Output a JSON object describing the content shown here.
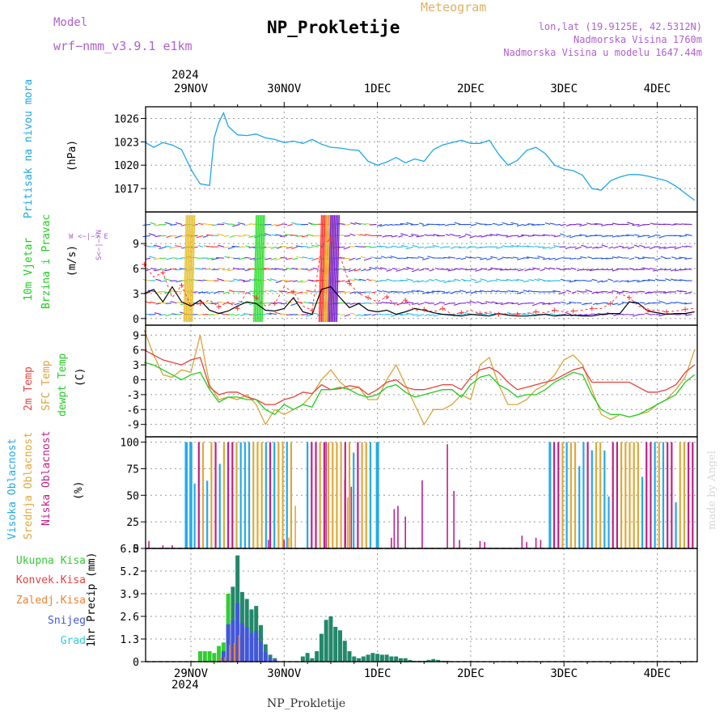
{
  "header": {
    "model_label": "Model",
    "model_name": "wrf−nmm_v3.9.1  e1km",
    "title": "NP_Prokletije",
    "subtitle": "Meteogram",
    "lonlat": "lon,lat (19.9125E, 42.5312N)",
    "elevation": "Nadmorska Visina 1760m",
    "model_elevation": "Nadmorska Visina u modelu 1647.44m",
    "year_top": "2024",
    "footer_name": "NP_Prokletije",
    "signature": "made by Angel"
  },
  "colors": {
    "pressure": "#1ea6e6",
    "temp2m": "#e8423c",
    "sfc": "#d8a43c",
    "dew": "#22cc22",
    "cloud_high": "#22aaee",
    "cloud_mid": "#e0a838",
    "cloud_low": "#c0208a",
    "precip_total": "#33cc33",
    "precip_conv": "#e84040",
    "precip_frz": "#f08030",
    "precip_snow": "#4455dd",
    "precip_grad": "#33cccc"
  },
  "dates": [
    "29NOV",
    "30NOV",
    "1DEC",
    "2DEC",
    "3DEC",
    "4DEC"
  ],
  "bottom_year": "2024",
  "panels": {
    "pressure": {
      "ylabel1": "Pritisak na nivou mora",
      "ylabel2": "(hPa)"
    },
    "wind": {
      "ylabel1": "10m Vjetar",
      "ylabel2": "Brzina i Pravac",
      "ylabel3": "(m/s)",
      "compass": "W <−|−> E",
      "compass_ns": "S<−|−>N"
    },
    "temp": {
      "ylabel1": "2m Temp",
      "ylabel2": "SFC Temp",
      "ylabel3": "dewpt Temp",
      "ylabel4": "(C)"
    },
    "cloud": {
      "ylabel1": "Visoka Oblacnost",
      "ylabel2": "Srednja Oblacnost",
      "ylabel3": "Niska Oblacnost",
      "ylabel4": "(%)"
    },
    "precip": {
      "ylabel": "1hr Precip (mm)",
      "legend": [
        "Ukupna Kisa",
        "Konvek.Kisa",
        "Zaledj.Kisa",
        "Snijeg",
        "Grad"
      ]
    }
  },
  "chart_data": [
    {
      "type": "line",
      "title": "Pritisak na nivou mora",
      "ylabel": "(hPa)",
      "yticks": [
        1017,
        1020,
        1023,
        1026
      ],
      "ylim": [
        1014,
        1027.5
      ],
      "xlim": [
        -0.5,
        5.4
      ],
      "x": [
        -0.5,
        -0.4,
        -0.3,
        -0.2,
        -0.1,
        0.0,
        0.05,
        0.1,
        0.2,
        0.25,
        0.3,
        0.35,
        0.4,
        0.5,
        0.6,
        0.7,
        0.8,
        0.9,
        1.0,
        1.1,
        1.2,
        1.3,
        1.4,
        1.5,
        1.6,
        1.7,
        1.8,
        1.9,
        2.0,
        2.1,
        2.2,
        2.3,
        2.4,
        2.5,
        2.6,
        2.7,
        2.8,
        2.9,
        3.0,
        3.1,
        3.2,
        3.3,
        3.4,
        3.5,
        3.6,
        3.7,
        3.8,
        3.9,
        4.0,
        4.1,
        4.2,
        4.3,
        4.4,
        4.5,
        4.6,
        4.7,
        4.8,
        4.9,
        5.0,
        5.1,
        5.2,
        5.3,
        5.4
      ],
      "series": [
        {
          "values": [
            1023,
            1022.3,
            1022.9,
            1022.6,
            1022.0,
            1019.5,
            1018.5,
            1017.6,
            1017.4,
            1023.5,
            1025.5,
            1026.7,
            1025.0,
            1023.9,
            1023.8,
            1024.0,
            1023.5,
            1023.3,
            1022.9,
            1023.1,
            1022.8,
            1023.3,
            1022.7,
            1022.3,
            1022.2,
            1022.0,
            1021.9,
            1020.5,
            1020.0,
            1020.4,
            1021.0,
            1020.3,
            1020.8,
            1020.5,
            1022.0,
            1022.6,
            1022.9,
            1023.2,
            1022.8,
            1022.8,
            1023.2,
            1021.4,
            1020.0,
            1020.6,
            1021.9,
            1022.3,
            1021.5,
            1020.0,
            1019.5,
            1019.3,
            1018.7,
            1017.0,
            1016.8,
            1018.0,
            1018.5,
            1018.8,
            1018.8,
            1018.6,
            1018.3,
            1018.0,
            1017.3,
            1016.4,
            1015.5
          ]
        }
      ]
    },
    {
      "type": "line",
      "title": "10m Vjetar Brzina i Pravac",
      "ylabel": "(m/s)",
      "yticks": [
        0,
        3,
        6,
        9
      ],
      "ylim": [
        -0.8,
        12.8
      ],
      "x": [
        -0.5,
        -0.4,
        -0.3,
        -0.2,
        -0.1,
        0.0,
        0.1,
        0.2,
        0.3,
        0.4,
        0.5,
        0.6,
        0.7,
        0.8,
        0.9,
        1.0,
        1.1,
        1.2,
        1.3,
        1.4,
        1.5,
        1.6,
        1.7,
        1.8,
        1.9,
        2.0,
        2.1,
        2.2,
        2.3,
        2.4,
        2.5,
        2.6,
        2.7,
        2.8,
        2.9,
        3.0,
        3.1,
        3.2,
        3.3,
        3.4,
        3.5,
        3.6,
        3.7,
        3.8,
        3.9,
        4.0,
        4.1,
        4.2,
        4.3,
        4.4,
        4.5,
        4.6,
        4.7,
        4.8,
        4.9,
        5.0,
        5.1,
        5.2,
        5.3,
        5.4
      ],
      "series": [
        {
          "values": [
            3,
            3.5,
            2,
            3.8,
            2,
            1.5,
            2.2,
            1,
            0.6,
            0.9,
            1.5,
            2.0,
            1.8,
            1.0,
            0.9,
            1.2,
            2.5,
            0.8,
            0.5,
            3.5,
            3.8,
            2.5,
            1.3,
            1.8,
            1.0,
            0.8,
            1.0,
            0.5,
            0.8,
            1.2,
            1.0,
            0.7,
            0.5,
            0.4,
            0.3,
            0.5,
            0.4,
            0.3,
            0.6,
            0.4,
            0.3,
            0.3,
            0.4,
            0.5,
            0.3,
            0.4,
            0.4,
            0.3,
            0.3,
            0.5,
            0.6,
            0.6,
            2.0,
            1.8,
            0.9,
            0.7,
            0.5,
            0.6,
            0.6,
            0.8
          ]
        },
        {
          "values": [
            6.5,
            5.0,
            5.5,
            2.5,
            4.0,
            1.5,
            1.8,
            2.2,
            1.4,
            2.0,
            1.2,
            3.2,
            2.5,
            1.5,
            1.8,
            3.8,
            3.2,
            1.5,
            1.0,
            8.8,
            9.5,
            7.5,
            4.2,
            3.0,
            2.5,
            2.0,
            2.6,
            1.5,
            2.2,
            1.0,
            1.1,
            0.8,
            1.2,
            0.5,
            0.7,
            1.0,
            0.6,
            0.8,
            0.5,
            0.6,
            0.5,
            0.6,
            0.8,
            0.7,
            1.0,
            0.8,
            0.9,
            1.0,
            1.2,
            1.2,
            1.8,
            3.0,
            2.5,
            1.5,
            1.0,
            1.0,
            0.8,
            0.9,
            1.1,
            1.2
          ]
        }
      ]
    },
    {
      "type": "line",
      "title": "2m Temp / SFC Temp / dewpt Temp",
      "ylabel": "(C)",
      "yticks": [
        -9,
        -6,
        -3,
        0,
        3,
        6,
        9
      ],
      "ylim": [
        -11.5,
        11
      ],
      "x": [
        -0.5,
        -0.4,
        -0.3,
        -0.2,
        -0.1,
        0.0,
        0.1,
        0.2,
        0.3,
        0.4,
        0.5,
        0.6,
        0.7,
        0.8,
        0.9,
        1.0,
        1.1,
        1.2,
        1.3,
        1.4,
        1.5,
        1.6,
        1.7,
        1.8,
        1.9,
        2.0,
        2.1,
        2.2,
        2.3,
        2.4,
        2.5,
        2.6,
        2.7,
        2.8,
        2.9,
        3.0,
        3.1,
        3.2,
        3.3,
        3.4,
        3.5,
        3.6,
        3.7,
        3.8,
        3.9,
        4.0,
        4.1,
        4.2,
        4.3,
        4.4,
        4.5,
        4.6,
        4.7,
        4.8,
        4.9,
        5.0,
        5.1,
        5.2,
        5.3,
        5.4
      ],
      "series": [
        {
          "name": "2m Temp",
          "values": [
            6,
            5,
            4,
            3.5,
            3,
            4,
            4.5,
            -1.5,
            -3,
            -2.5,
            -2.5,
            -3.5,
            -4,
            -5,
            -5,
            -4,
            -3.5,
            -2.5,
            -2.8,
            -1,
            -2,
            -1.8,
            -1.2,
            -1.5,
            -3,
            -2,
            -0.5,
            0,
            -1.5,
            -2,
            -2,
            -1.5,
            -1,
            -1,
            -2,
            0.5,
            2.0,
            2.5,
            1.5,
            -0.5,
            -2,
            -1.5,
            -1,
            -0.5,
            0,
            1,
            2,
            2.5,
            -0.5,
            -0.5,
            -0.5,
            -0.5,
            -0.5,
            -1.5,
            -2.5,
            -2.5,
            -2,
            -1,
            1.5,
            3
          ]
        },
        {
          "name": "SFC Temp",
          "values": [
            10,
            5,
            1,
            0.5,
            2,
            1.5,
            9,
            -1,
            -4,
            -3.5,
            -4,
            -3,
            -5,
            -9,
            -6,
            -7,
            -6,
            -5,
            -3,
            0,
            2,
            -0.5,
            -2,
            -1.5,
            -4,
            -4,
            0,
            3,
            -1,
            -5,
            -9,
            -6,
            -6,
            -5,
            -3,
            -4,
            3,
            4.5,
            -1,
            -5,
            -5,
            -4,
            -2,
            -1,
            1,
            4,
            5,
            3,
            -2,
            -7,
            -8,
            -7,
            -7.5,
            -7,
            -6.5,
            -5,
            -4,
            -2,
            0.5,
            6
          ]
        },
        {
          "name": "dewpt Temp",
          "values": [
            3.5,
            3,
            2,
            1,
            0,
            1,
            1.5,
            -2,
            -4.5,
            -3.5,
            -3.5,
            -4,
            -4,
            -6,
            -7,
            -5,
            -6,
            -5,
            -5.5,
            -2,
            -2,
            -1.5,
            -2,
            -3,
            -3.5,
            -3,
            -1.5,
            -1,
            -2.5,
            -3.5,
            -3,
            -2.5,
            -2,
            -2,
            -3.5,
            -1,
            0.5,
            1,
            -1,
            -2,
            -3.5,
            -3,
            -3,
            -2,
            -0.5,
            0.5,
            1.5,
            1,
            -3,
            -6,
            -7,
            -7,
            -7.5,
            -7,
            -6,
            -5,
            -4,
            -3,
            -0.5,
            1
          ]
        }
      ]
    },
    {
      "type": "bar",
      "title": "Visoka / Srednja / Niska Oblacnost",
      "ylabel": "(%)",
      "yticks": [
        0,
        25,
        50,
        75,
        100
      ],
      "ylim": [
        0,
        105
      ]
    },
    {
      "type": "bar",
      "title": "1hr Precip",
      "ylabel": "1hr Precip (mm)",
      "yticks": [
        0,
        1.3,
        2.6,
        3.9,
        5.2,
        6.5
      ],
      "ylim": [
        0,
        6.5
      ],
      "x": [
        0.1,
        0.15,
        0.2,
        0.25,
        0.3,
        0.35,
        0.4,
        0.45,
        0.5,
        0.55,
        0.6,
        0.65,
        0.7,
        0.75,
        0.8,
        0.85,
        0.9,
        1.2,
        1.25,
        1.3,
        1.35,
        1.4,
        1.45,
        1.5,
        1.55,
        1.6,
        1.65,
        1.7,
        1.75,
        1.8,
        1.85,
        1.9,
        1.95,
        2.0,
        2.05,
        2.1,
        2.15,
        2.2,
        2.25,
        2.3,
        2.35,
        2.4,
        2.45,
        2.5,
        2.55,
        2.6,
        2.65,
        2.7,
        2.75
      ],
      "series": [
        {
          "name": "Ukupna Kisa",
          "values": [
            0.6,
            0.6,
            0.6,
            0.5,
            0.9,
            1.1,
            3.9,
            4.3,
            6.1,
            4.0,
            3.6,
            3.0,
            3.2,
            2.1,
            1.0,
            0.4,
            0.2,
            0.3,
            0.5,
            0.2,
            0.6,
            1.6,
            2.4,
            2.6,
            2.0,
            1.8,
            1.2,
            0.6,
            0.3,
            0.2,
            0.3,
            0.4,
            0.5,
            0.45,
            0.4,
            0.4,
            0.3,
            0.3,
            0.2,
            0.2,
            0.1,
            0.05,
            0.05,
            0.05,
            0.1,
            0.15,
            0.1,
            0.05,
            0.05
          ]
        }
      ]
    }
  ]
}
